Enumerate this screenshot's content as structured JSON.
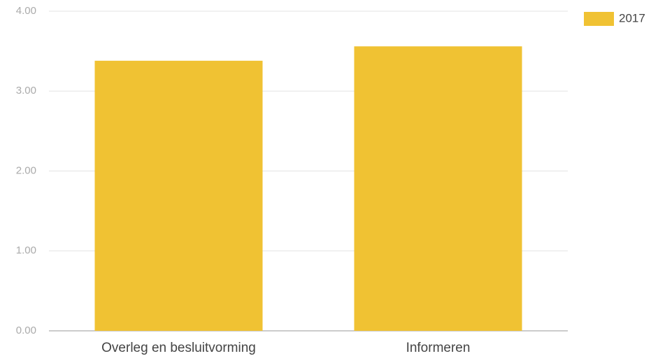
{
  "chart_data": {
    "type": "bar",
    "categories": [
      "Overleg en besluitvorming",
      "Informeren"
    ],
    "series": [
      {
        "name": "2017",
        "color": "#f0c233",
        "values": [
          3.38,
          3.56
        ]
      }
    ],
    "ylim": [
      0,
      4
    ],
    "yticks": [
      {
        "value": 0,
        "label": "0.00"
      },
      {
        "value": 1,
        "label": "1.00"
      },
      {
        "value": 2,
        "label": "2.00"
      },
      {
        "value": 3,
        "label": "3.00"
      },
      {
        "value": 4,
        "label": "4.00"
      }
    ],
    "grid": true,
    "legend": "top-right"
  }
}
